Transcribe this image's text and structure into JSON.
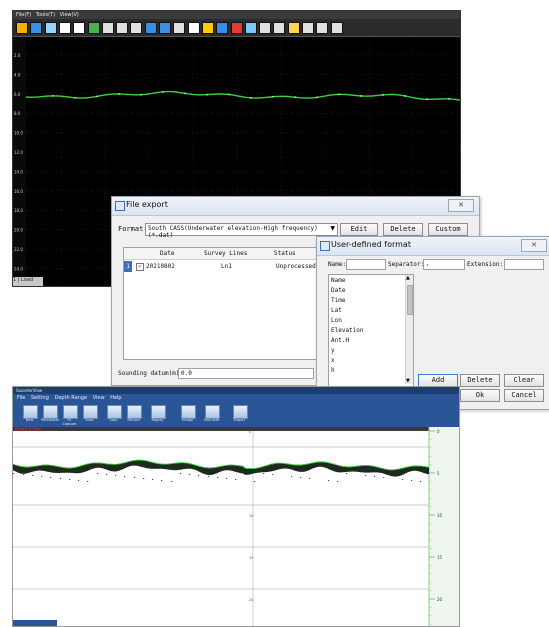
{
  "top_window": {
    "menu": [
      "File(F)",
      "Tools(T)",
      "View(V)"
    ],
    "depth_ticks": [
      "2.0",
      "4.0",
      "6.0",
      "8.0",
      "10.0",
      "12.0",
      "14.0",
      "16.0",
      "18.0",
      "20.0",
      "22.0",
      "24.0"
    ],
    "toolbar_icons": [
      "open-file-icon",
      "new-file-icon",
      "ruler-icon",
      "bars-icon",
      "chart-icon",
      "layers-icon",
      "save-icon",
      "print-icon",
      "play-icon",
      "back-arrow-icon",
      "forward-arrow-icon",
      "zoom-icon",
      "zoom-out-icon",
      "fit-icon",
      "image-icon",
      "delete-icon",
      "grid-icon",
      "export-icon",
      "refresh-icon",
      "settings-icon",
      "info-icon",
      "square-icon",
      "window-icon"
    ],
    "status": "1 | Load"
  },
  "file_export": {
    "title": "File export",
    "format_label": "Format:",
    "format_value": "South CASS(Underwater elevation-High frequency)(*.dat)",
    "buttons": {
      "edit": "Edit",
      "delete": "Delete",
      "custom": "Custom"
    },
    "columns": {
      "date": "Date",
      "survey_lines": "Survey Lines",
      "status": "Status"
    },
    "rows": [
      {
        "index": "1",
        "date": "20210802",
        "line": "Ln1",
        "status": "Unprocessed"
      }
    ],
    "sounding_label": "Sounding datum(m):",
    "sounding_value": "0.0"
  },
  "user_format": {
    "title": "User-defined format",
    "name_label": "Name:",
    "separator_label": "Separator:",
    "separator_value": ",",
    "extension_label": "Extension:",
    "fields": [
      "Name",
      "Date",
      "Time",
      "Lat",
      "Lon",
      "Elevation",
      "Ant.H",
      "y",
      "x",
      "h"
    ],
    "buttons": {
      "add": "Add",
      "delete": "Delete",
      "clear": "Clear",
      "ok": "Ok",
      "cancel": "Cancel"
    }
  },
  "bottom_window": {
    "title": "SounderView",
    "menu": [
      "File",
      "Setting",
      "Depth Range",
      "View",
      "Help"
    ],
    "toolbar": [
      "New",
      "Parameter",
      "RT Capture",
      "Start",
      "Stop",
      "Record",
      "Replay",
      "Image",
      "Simulate",
      "Export"
    ],
    "depth_label": "Depth:2.50m",
    "axis_ticks": [
      "0",
      "5",
      "10",
      "15",
      "20"
    ]
  }
}
